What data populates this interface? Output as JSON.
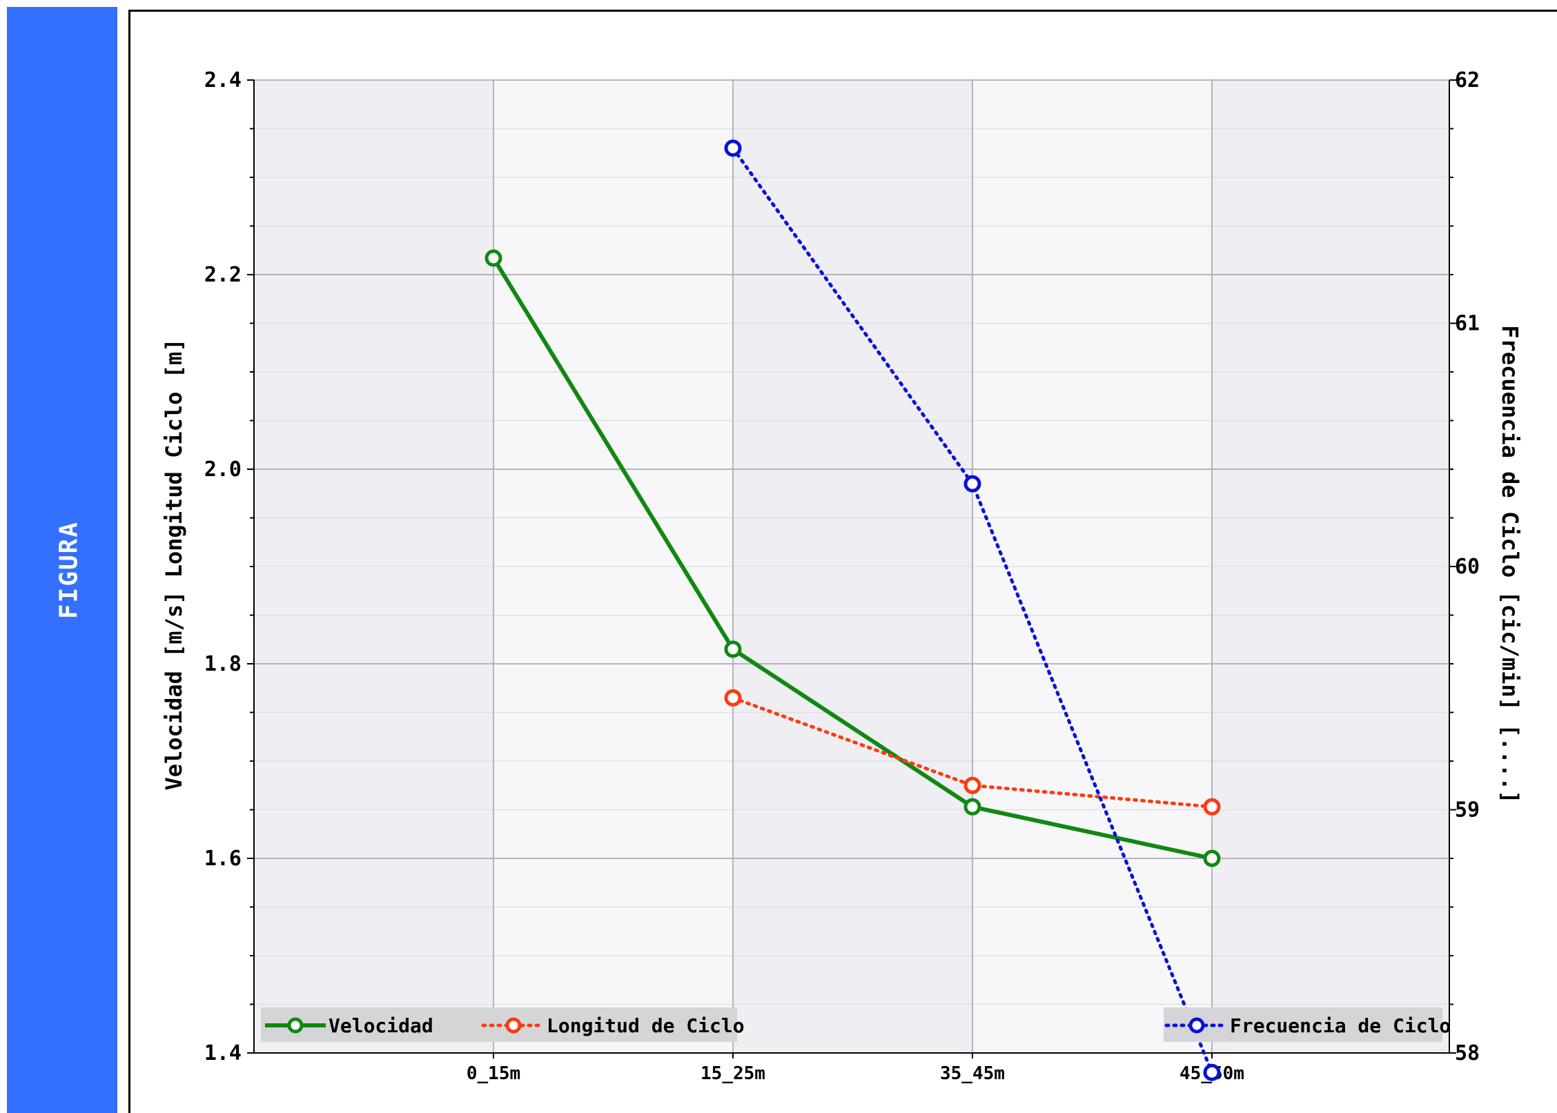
{
  "sidebar": {
    "label": "FIGURA",
    "color": "#3370ff"
  },
  "chart_data": {
    "type": "line",
    "categories": [
      "0_15m",
      "15_25m",
      "35_45m",
      "45_50m"
    ],
    "ylabel": "Velocidad [m/s]  Longitud Ciclo [m]",
    "y2label": "Frecuencia de Ciclo [cic/min] [....]",
    "ylim": [
      1.4,
      2.4
    ],
    "y2lim": [
      58,
      62
    ],
    "yticks": [
      "1.4",
      "1.6",
      "1.8",
      "2.0",
      "2.2",
      "2.4"
    ],
    "y2ticks": [
      "58",
      "59",
      "60",
      "61",
      "62"
    ],
    "grid": true,
    "series": [
      {
        "name": "Velocidad",
        "axis": "left",
        "color": "#118811",
        "style": "solid",
        "values": [
          2.217,
          1.815,
          1.653,
          1.6
        ]
      },
      {
        "name": "Longitud de Ciclo",
        "axis": "left",
        "color": "#ff3a12",
        "style": "dotted",
        "values": [
          null,
          1.765,
          1.675,
          1.653
        ]
      },
      {
        "name": "Frecuencia de Ciclo",
        "axis": "right",
        "color": "#0a12d6",
        "style": "dotted",
        "values": [
          null,
          61.72,
          60.34,
          57.92
        ]
      }
    ]
  }
}
